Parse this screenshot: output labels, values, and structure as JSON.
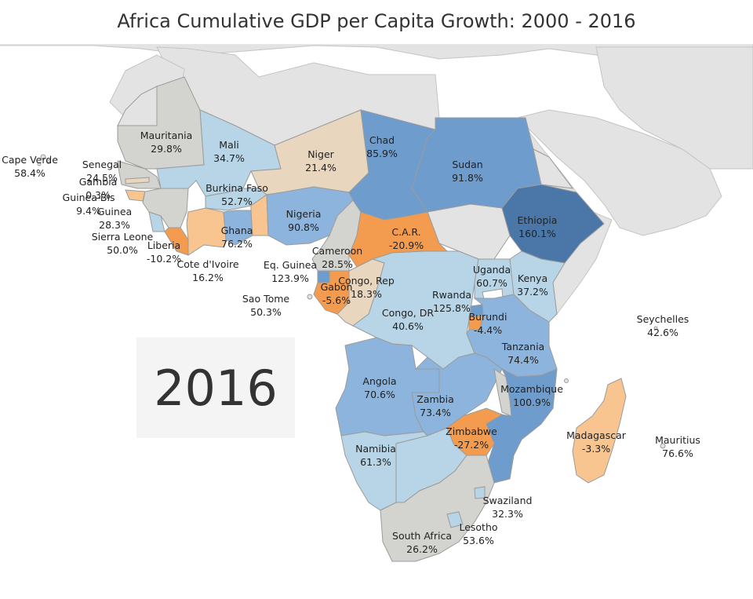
{
  "title": "Africa Cumulative GDP per Capita Growth: 2000 - 2016",
  "year": "2016",
  "colors": {
    "background": "#ffffff",
    "ocean": "#ffffff",
    "other_land": "#e3e3e3",
    "border": "#9b9b9b",
    "title_text": "#333333",
    "year_box": "#f4f4f4",
    "scale_negative_strong": "#f39c4f",
    "scale_negative_light": "#f8c590",
    "scale_neutral_low": "#e8d6bf",
    "scale_neutral": "#d3d3cf",
    "scale_positive_light": "#b7d5e6",
    "scale_positive_mid": "#8cb4dd",
    "scale_positive_strong": "#6e9ccc",
    "scale_positive_max": "#4a77a8"
  },
  "countries": [
    {
      "name": "Mauritania",
      "value": "29.8%"
    },
    {
      "name": "Mali",
      "value": "34.7%"
    },
    {
      "name": "Niger",
      "value": "21.4%"
    },
    {
      "name": "Chad",
      "value": "85.9%"
    },
    {
      "name": "Sudan",
      "value": "91.8%"
    },
    {
      "name": "Cape Verde",
      "value": "58.4%"
    },
    {
      "name": "Senegal",
      "value": "24.5%"
    },
    {
      "name": "Gambia",
      "value": "0.3%"
    },
    {
      "name": "Guinea-Bis",
      "value": "9.4%"
    },
    {
      "name": "Guinea",
      "value": "28.3%"
    },
    {
      "name": "Sierra Leone",
      "value": "50.0%"
    },
    {
      "name": "Liberia",
      "value": "-10.2%"
    },
    {
      "name": "Cote d'Ivoire",
      "value": "16.2%"
    },
    {
      "name": "Burkina Faso",
      "value": "52.7%"
    },
    {
      "name": "Ghana",
      "value": "76.2%"
    },
    {
      "name": "Nigeria",
      "value": "90.8%"
    },
    {
      "name": "Ethiopia",
      "value": "160.1%"
    },
    {
      "name": "C.A.R.",
      "value": "-20.9%"
    },
    {
      "name": "Cameroon",
      "value": "28.5%"
    },
    {
      "name": "Eq. Guinea",
      "value": "123.9%"
    },
    {
      "name": "Gabon",
      "value": "-5.6%"
    },
    {
      "name": "Congo, Rep",
      "value": "18.3%"
    },
    {
      "name": "Sao Tome",
      "value": "50.3%"
    },
    {
      "name": "Uganda",
      "value": "60.7%"
    },
    {
      "name": "Kenya",
      "value": "37.2%"
    },
    {
      "name": "Rwanda",
      "value": "125.8%"
    },
    {
      "name": "Burundi",
      "value": "-4.4%"
    },
    {
      "name": "Congo, DR",
      "value": "40.6%"
    },
    {
      "name": "Tanzania",
      "value": "74.4%"
    },
    {
      "name": "Seychelles",
      "value": "42.6%"
    },
    {
      "name": "Angola",
      "value": "70.6%"
    },
    {
      "name": "Zambia",
      "value": "73.4%"
    },
    {
      "name": "Mozambique",
      "value": "100.9%"
    },
    {
      "name": "Zimbabwe",
      "value": "-27.2%"
    },
    {
      "name": "Madagascar",
      "value": "-3.3%"
    },
    {
      "name": "Mauritius",
      "value": "76.6%"
    },
    {
      "name": "Namibia",
      "value": "61.3%"
    },
    {
      "name": "Swaziland",
      "value": "32.3%"
    },
    {
      "name": "Lesotho",
      "value": "53.6%"
    },
    {
      "name": "South Africa",
      "value": "26.2%"
    }
  ]
}
